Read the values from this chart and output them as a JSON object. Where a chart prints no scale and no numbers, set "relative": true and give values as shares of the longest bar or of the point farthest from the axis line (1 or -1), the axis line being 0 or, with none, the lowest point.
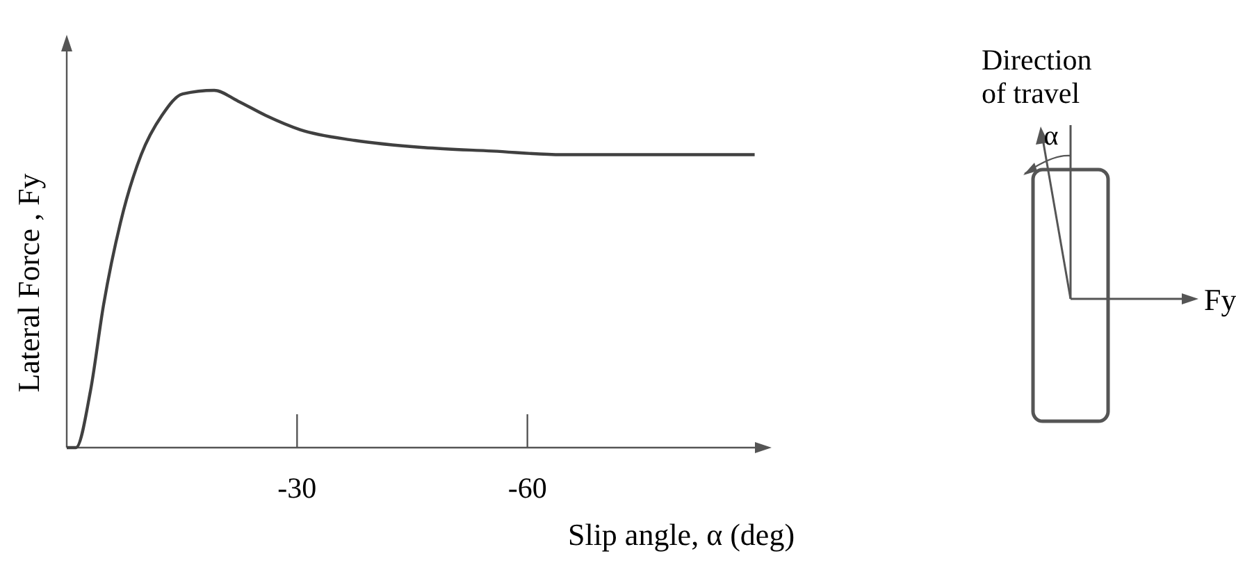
{
  "chart_data": {
    "type": "line",
    "xlabel": "Slip angle, α (deg)",
    "ylabel": "Lateral Force , Fy",
    "relative": true,
    "x": [
      0,
      -1.2,
      -3.1,
      -4.8,
      -7.0,
      -9.7,
      -12.4,
      -15.1,
      -19.2,
      -22.3,
      -25.9,
      -30.4,
      -37.5,
      -46.5,
      -55.5,
      -64.5,
      -89.6
    ],
    "series": [
      {
        "color": "#404040",
        "values": [
          0,
          0,
          0.16,
          0.4,
          0.63,
          0.82,
          0.93,
          0.99,
          1.0,
          0.97,
          0.93,
          0.89,
          0.86,
          0.84,
          0.83,
          0.82,
          0.82
        ]
      }
    ],
    "xlim": [
      0,
      -90
    ],
    "xticks": [
      -30,
      -60
    ],
    "annotations": [
      "Direction\nof travel",
      "α",
      "Fy"
    ]
  }
}
